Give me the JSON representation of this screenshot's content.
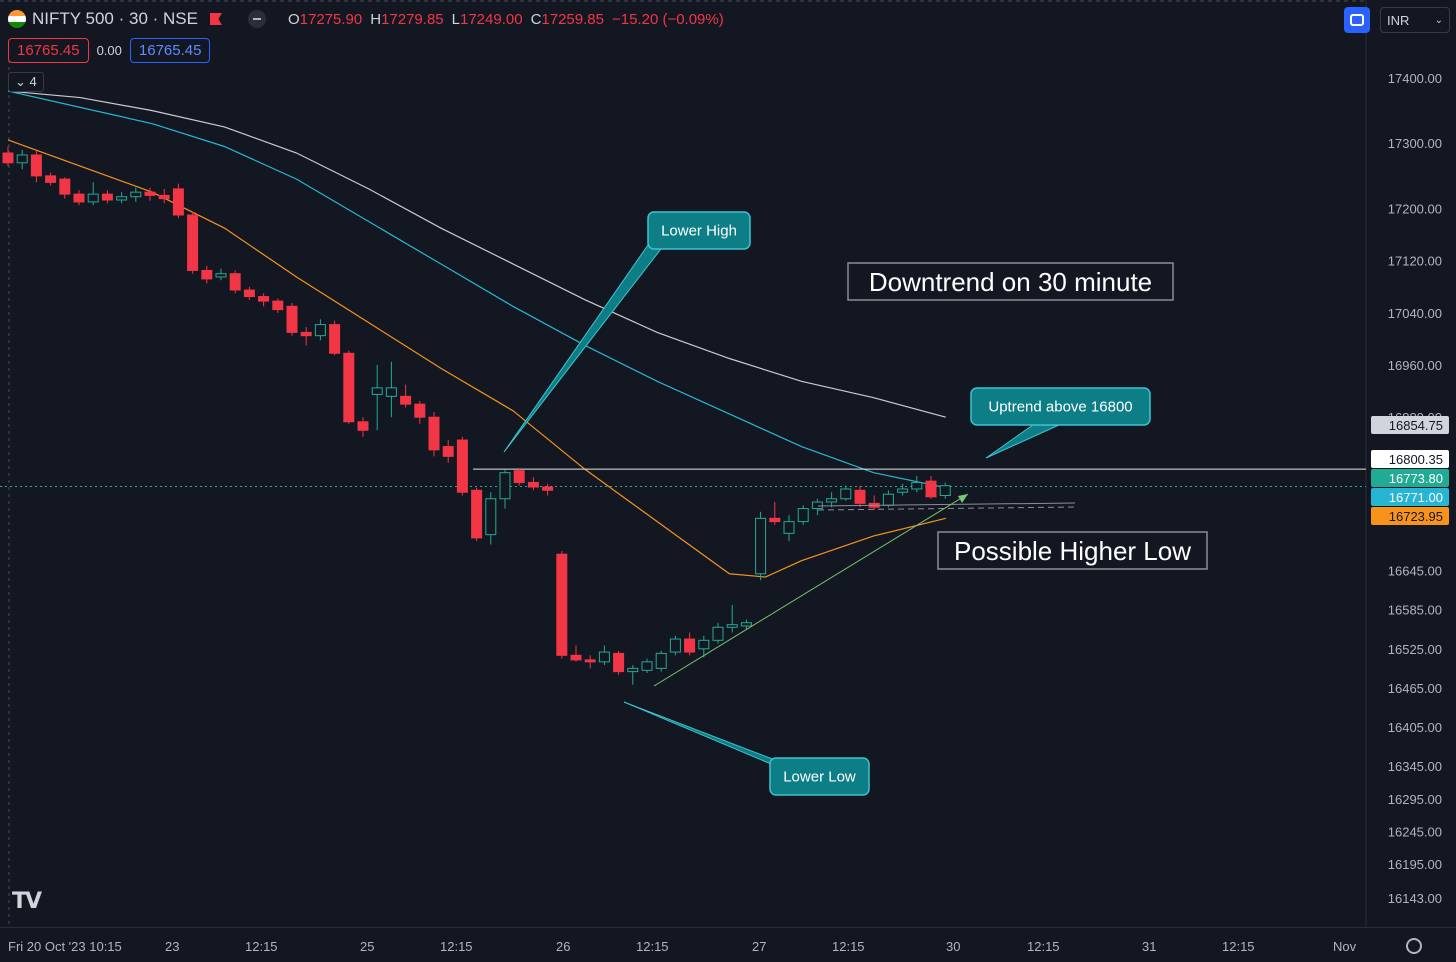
{
  "header": {
    "symbol": "NIFTY 500 · 30 · NSE",
    "ohlc": [
      {
        "k": "O",
        "v": "17275.90"
      },
      {
        "k": "H",
        "v": "17279.85"
      },
      {
        "k": "L",
        "v": "17249.00"
      },
      {
        "k": "C",
        "v": "17259.85"
      }
    ],
    "change": "−15.20 (−0.09%)",
    "currency": "INR",
    "collapse_label": "4"
  },
  "trade": {
    "sell": "16765.45",
    "spread": "0.00",
    "buy": "16765.45"
  },
  "colors": {
    "up": "#22ab94",
    "down": "#f23645",
    "orange": "#f7931a",
    "cyan": "#26b6d4",
    "white_ma": "#c8cbd2",
    "callout": "#0d7d86",
    "callout_border": "#3ec4cf"
  },
  "axis": {
    "y_labels": [
      "17400.00",
      "17300.00",
      "17200.00",
      "17120.00",
      "17040.00",
      "16960.00",
      "16880.00",
      "16645.00",
      "16585.00",
      "16525.00",
      "16465.00",
      "16405.00",
      "16345.00",
      "16295.00",
      "16245.00",
      "16195.00",
      "16143.00"
    ],
    "x_labels": [
      "Fri 20 Oct '23   10:15",
      "23",
      "12:15",
      "25",
      "12:15",
      "26",
      "12:15",
      "27",
      "12:15",
      "30",
      "12:15",
      "31",
      "12:15",
      "Nov"
    ]
  },
  "price_tags": [
    {
      "label": "16854.75",
      "bg": "#d1d4dc",
      "fg": "#131722"
    },
    {
      "label": "16800.35",
      "bg": "#ffffff",
      "fg": "#131722"
    },
    {
      "label": "16773.80",
      "bg": "#22ab94",
      "fg": "#ffffff"
    },
    {
      "label": "16771.00",
      "bg": "#26b6d4",
      "fg": "#ffffff"
    },
    {
      "label": "16723.95",
      "bg": "#f7931a",
      "fg": "#131722"
    }
  ],
  "annotations": {
    "lower_high": "Lower High",
    "lower_low": "Lower Low",
    "uptrend": "Uptrend above 16800",
    "downtrend": "Downtrend on 30 minute",
    "higher_low": "Possible Higher Low"
  },
  "chart_data": {
    "type": "candlestick",
    "title": "NIFTY 500 · 30 · NSE",
    "interval": "30 minute",
    "ylim": [
      16143,
      17400
    ],
    "candles": [
      {
        "o": 17285,
        "h": 17295,
        "l": 17265,
        "c": 17270
      },
      {
        "o": 17270,
        "h": 17290,
        "l": 17260,
        "c": 17282
      },
      {
        "o": 17282,
        "h": 17288,
        "l": 17240,
        "c": 17250
      },
      {
        "o": 17250,
        "h": 17255,
        "l": 17235,
        "c": 17240
      },
      {
        "o": 17245,
        "h": 17248,
        "l": 17215,
        "c": 17222
      },
      {
        "o": 17222,
        "h": 17228,
        "l": 17205,
        "c": 17210
      },
      {
        "o": 17210,
        "h": 17240,
        "l": 17205,
        "c": 17222
      },
      {
        "o": 17222,
        "h": 17228,
        "l": 17208,
        "c": 17213
      },
      {
        "o": 17213,
        "h": 17225,
        "l": 17208,
        "c": 17218
      },
      {
        "o": 17218,
        "h": 17232,
        "l": 17210,
        "c": 17225
      },
      {
        "o": 17225,
        "h": 17232,
        "l": 17212,
        "c": 17220
      },
      {
        "o": 17220,
        "h": 17230,
        "l": 17208,
        "c": 17215
      },
      {
        "o": 17230,
        "h": 17238,
        "l": 17185,
        "c": 17190
      },
      {
        "o": 17190,
        "h": 17195,
        "l": 17100,
        "c": 17105
      },
      {
        "o": 17105,
        "h": 17112,
        "l": 17085,
        "c": 17092
      },
      {
        "o": 17095,
        "h": 17108,
        "l": 17090,
        "c": 17100
      },
      {
        "o": 17100,
        "h": 17105,
        "l": 17070,
        "c": 17075
      },
      {
        "o": 17075,
        "h": 17080,
        "l": 17060,
        "c": 17065
      },
      {
        "o": 17065,
        "h": 17070,
        "l": 17050,
        "c": 17058
      },
      {
        "o": 17058,
        "h": 17062,
        "l": 17040,
        "c": 17045
      },
      {
        "o": 17050,
        "h": 17055,
        "l": 17005,
        "c": 17010
      },
      {
        "o": 17010,
        "h": 17018,
        "l": 16990,
        "c": 17005
      },
      {
        "o": 17005,
        "h": 17030,
        "l": 16998,
        "c": 17022
      },
      {
        "o": 17022,
        "h": 17028,
        "l": 16975,
        "c": 16978
      },
      {
        "o": 16978,
        "h": 16982,
        "l": 16870,
        "c": 16873
      },
      {
        "o": 16873,
        "h": 16880,
        "l": 16850,
        "c": 16860
      },
      {
        "o": 16915,
        "h": 16960,
        "l": 16860,
        "c": 16925
      },
      {
        "o": 16912,
        "h": 16965,
        "l": 16880,
        "c": 16925
      },
      {
        "o": 16912,
        "h": 16930,
        "l": 16895,
        "c": 16900
      },
      {
        "o": 16900,
        "h": 16905,
        "l": 16870,
        "c": 16880
      },
      {
        "o": 16880,
        "h": 16888,
        "l": 16820,
        "c": 16830
      },
      {
        "o": 16835,
        "h": 16845,
        "l": 16810,
        "c": 16820
      },
      {
        "o": 16845,
        "h": 16850,
        "l": 16760,
        "c": 16765
      },
      {
        "o": 16768,
        "h": 16772,
        "l": 16690,
        "c": 16695
      },
      {
        "o": 16700,
        "h": 16765,
        "l": 16685,
        "c": 16755
      },
      {
        "o": 16755,
        "h": 16800,
        "l": 16740,
        "c": 16795
      },
      {
        "o": 16798,
        "h": 16802,
        "l": 16775,
        "c": 16780
      },
      {
        "o": 16780,
        "h": 16788,
        "l": 16768,
        "c": 16773
      },
      {
        "o": 16773,
        "h": 16778,
        "l": 16760,
        "c": 16768
      },
      {
        "o": 16670,
        "h": 16675,
        "l": 16510,
        "c": 16515
      },
      {
        "o": 16515,
        "h": 16530,
        "l": 16505,
        "c": 16508
      },
      {
        "o": 16508,
        "h": 16515,
        "l": 16495,
        "c": 16505
      },
      {
        "o": 16505,
        "h": 16530,
        "l": 16500,
        "c": 16520
      },
      {
        "o": 16518,
        "h": 16522,
        "l": 16485,
        "c": 16490
      },
      {
        "o": 16490,
        "h": 16500,
        "l": 16470,
        "c": 16495
      },
      {
        "o": 16492,
        "h": 16510,
        "l": 16488,
        "c": 16505
      },
      {
        "o": 16495,
        "h": 16522,
        "l": 16490,
        "c": 16518
      },
      {
        "o": 16520,
        "h": 16545,
        "l": 16515,
        "c": 16540
      },
      {
        "o": 16540,
        "h": 16550,
        "l": 16515,
        "c": 16520
      },
      {
        "o": 16525,
        "h": 16545,
        "l": 16512,
        "c": 16538
      },
      {
        "o": 16538,
        "h": 16565,
        "l": 16533,
        "c": 16558
      },
      {
        "o": 16558,
        "h": 16592,
        "l": 16550,
        "c": 16562
      },
      {
        "o": 16560,
        "h": 16570,
        "l": 16555,
        "c": 16565
      },
      {
        "o": 16640,
        "h": 16735,
        "l": 16630,
        "c": 16725
      },
      {
        "o": 16725,
        "h": 16750,
        "l": 16715,
        "c": 16720
      },
      {
        "o": 16702,
        "h": 16730,
        "l": 16690,
        "c": 16720
      },
      {
        "o": 16720,
        "h": 16745,
        "l": 16715,
        "c": 16740
      },
      {
        "o": 16740,
        "h": 16755,
        "l": 16730,
        "c": 16750
      },
      {
        "o": 16750,
        "h": 16765,
        "l": 16742,
        "c": 16755
      },
      {
        "o": 16755,
        "h": 16775,
        "l": 16752,
        "c": 16770
      },
      {
        "o": 16768,
        "h": 16775,
        "l": 16742,
        "c": 16748
      },
      {
        "o": 16748,
        "h": 16760,
        "l": 16738,
        "c": 16742
      },
      {
        "o": 16745,
        "h": 16768,
        "l": 16742,
        "c": 16762
      },
      {
        "o": 16765,
        "h": 16778,
        "l": 16760,
        "c": 16770
      },
      {
        "o": 16770,
        "h": 16790,
        "l": 16765,
        "c": 16780
      },
      {
        "o": 16782,
        "h": 16790,
        "l": 16755,
        "c": 16758
      },
      {
        "o": 16760,
        "h": 16780,
        "l": 16755,
        "c": 16775
      }
    ],
    "moving_averages": [
      {
        "color": "white",
        "points": [
          [
            0,
            17380
          ],
          [
            4,
            17370
          ],
          [
            8,
            17350
          ],
          [
            12,
            17325
          ],
          [
            16,
            17285
          ],
          [
            20,
            17230
          ],
          [
            24,
            17170
          ],
          [
            28,
            17115
          ],
          [
            32,
            17060
          ],
          [
            36,
            17010
          ],
          [
            40,
            16970
          ],
          [
            44,
            16935
          ],
          [
            48,
            16910
          ],
          [
            52,
            16880
          ]
        ]
      },
      {
        "color": "cyan",
        "points": [
          [
            0,
            17380
          ],
          [
            4,
            17355
          ],
          [
            8,
            17330
          ],
          [
            12,
            17295
          ],
          [
            16,
            17245
          ],
          [
            20,
            17180
          ],
          [
            24,
            17115
          ],
          [
            28,
            17050
          ],
          [
            32,
            16990
          ],
          [
            36,
            16935
          ],
          [
            40,
            16885
          ],
          [
            44,
            16835
          ],
          [
            48,
            16795
          ],
          [
            52,
            16772
          ]
        ]
      },
      {
        "color": "orange",
        "points": [
          [
            0,
            17305
          ],
          [
            4,
            17265
          ],
          [
            8,
            17225
          ],
          [
            12,
            17170
          ],
          [
            16,
            17095
          ],
          [
            20,
            17025
          ],
          [
            24,
            16955
          ],
          [
            28,
            16890
          ],
          [
            32,
            16800
          ],
          [
            36,
            16720
          ],
          [
            40,
            16640
          ],
          [
            42,
            16635
          ],
          [
            44,
            16660
          ],
          [
            48,
            16698
          ],
          [
            52,
            16725
          ]
        ]
      }
    ],
    "horizontal_lines": [
      16800.35
    ],
    "last_price": 16773.8
  }
}
